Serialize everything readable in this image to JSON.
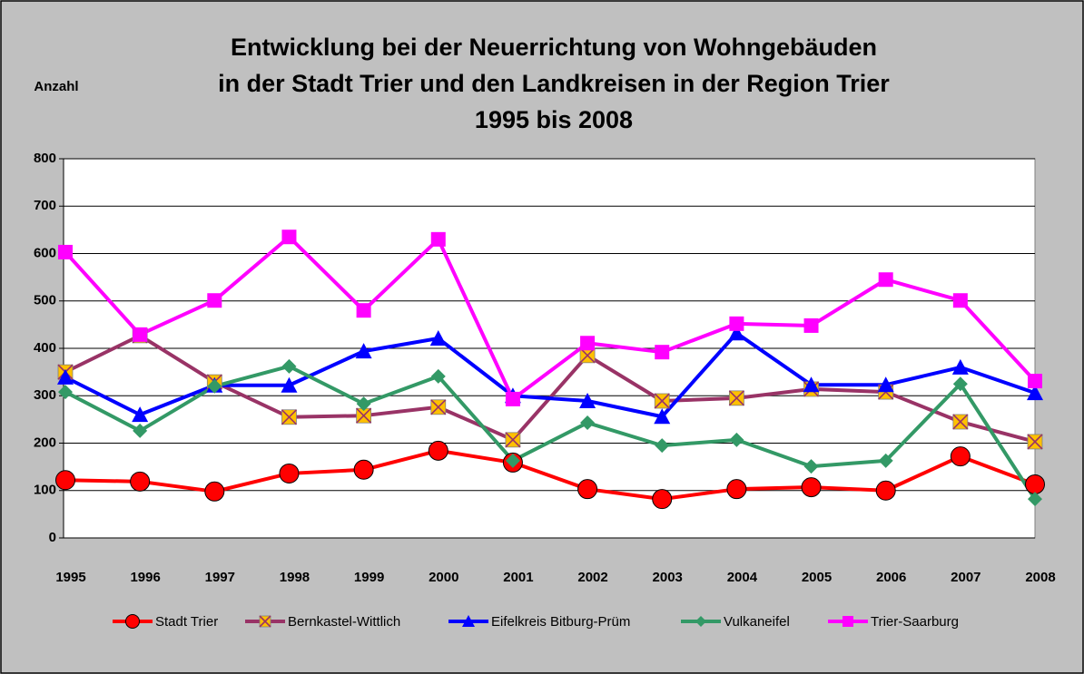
{
  "chart_data": {
    "type": "line",
    "title": [
      "Entwicklung bei der Neuerrichtung von Wohngebäuden",
      "in der Stadt Trier und den Landkreisen in der Region Trier",
      "1995 bis 2008"
    ],
    "y_label": "Anzahl",
    "categories": [
      "1995",
      "1996",
      "1997",
      "1998",
      "1999",
      "2000",
      "2001",
      "2002",
      "2003",
      "2004",
      "2005",
      "2006",
      "2007",
      "2008"
    ],
    "series": [
      {
        "name": "Stadt Trier",
        "color": "#ff0000",
        "marker": "circle",
        "values": [
          122,
          119,
          98,
          136,
          144,
          184,
          159,
          103,
          82,
          103,
          107,
          100,
          172,
          113
        ]
      },
      {
        "name": "Bernkastel-Wittlich",
        "color": "#993366",
        "marker": "square-x",
        "marker_color": "#ffc000",
        "values": [
          350,
          427,
          329,
          255,
          258,
          276,
          207,
          385,
          289,
          295,
          314,
          308,
          245,
          203
        ]
      },
      {
        "name": "Eifelkreis Bitburg-Prüm",
        "color": "#0000ff",
        "marker": "triangle",
        "values": [
          339,
          260,
          322,
          322,
          394,
          421,
          300,
          289,
          256,
          432,
          323,
          323,
          360,
          306
        ]
      },
      {
        "name": "Vulkaneifel",
        "color": "#339966",
        "marker": "diamond",
        "values": [
          308,
          226,
          320,
          362,
          283,
          341,
          163,
          243,
          195,
          207,
          151,
          163,
          325,
          82
        ]
      },
      {
        "name": "Trier-Saarburg",
        "color": "#ff00ff",
        "marker": "square",
        "values": [
          603,
          429,
          501,
          635,
          480,
          630,
          293,
          411,
          392,
          452,
          448,
          545,
          501,
          331
        ]
      }
    ],
    "ylim": [
      0,
      800
    ],
    "yticks": [
      0,
      100,
      200,
      300,
      400,
      500,
      600,
      700,
      800
    ],
    "grid": true,
    "legend": "bottom"
  }
}
